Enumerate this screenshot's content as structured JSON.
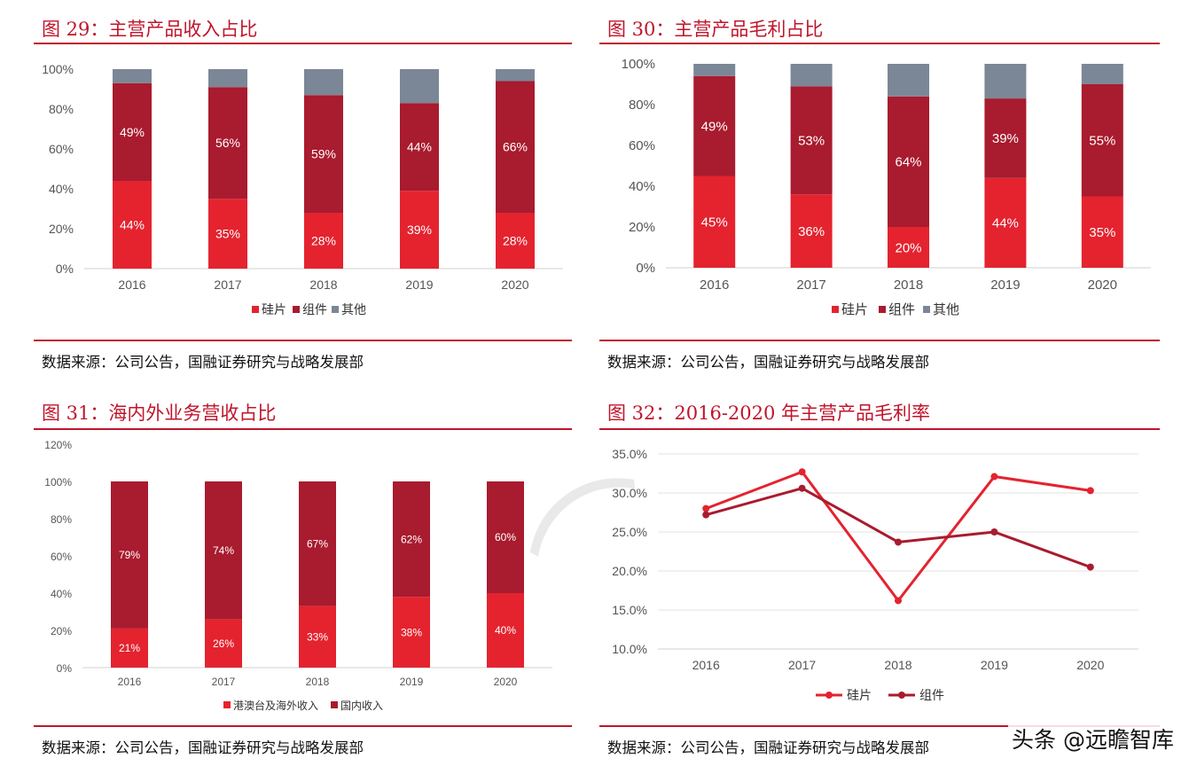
{
  "colors": {
    "accent": "#c0142b",
    "silicon": "#e4232f",
    "module": "#a91b2e",
    "other": "#7b8796"
  },
  "figures": [
    {
      "title": "图 29：主营产品收入占比",
      "source": "数据来源：公司公告，国融证券研究与战略发展部"
    },
    {
      "title": "图 30：主营产品毛利占比",
      "source": "数据来源：公司公告，国融证券研究与战略发展部"
    },
    {
      "title": "图 31：海内外业务营收占比",
      "source": "数据来源：公司公告，国融证券研究与战略发展部"
    },
    {
      "title": "图 32：2016-2020 年主营产品毛利率",
      "source": "数据来源：公司公告，国融证券研究与战略发展部"
    }
  ],
  "brand_watermark": "头条 @远瞻智库",
  "chart_data": [
    {
      "type": "bar",
      "stacked": true,
      "categories": [
        "2016",
        "2017",
        "2018",
        "2019",
        "2020"
      ],
      "yticks": [
        "0%",
        "20%",
        "40%",
        "60%",
        "80%",
        "100%"
      ],
      "ylim": [
        0,
        100
      ],
      "series": [
        {
          "name": "硅片",
          "color": "#e4232f",
          "values": [
            44,
            35,
            28,
            39,
            28
          ],
          "labels": [
            "44%",
            "35%",
            "28%",
            "39%",
            "28%"
          ]
        },
        {
          "name": "组件",
          "color": "#a91b2e",
          "values": [
            49,
            56,
            59,
            44,
            66
          ],
          "labels": [
            "49%",
            "56%",
            "59%",
            "44%",
            "66%"
          ]
        },
        {
          "name": "其他",
          "color": "#7b8796",
          "values": [
            7,
            9,
            13,
            17,
            6
          ],
          "labels": [
            "",
            "",
            "",
            "",
            ""
          ]
        }
      ],
      "legend": "bottom",
      "grid": false
    },
    {
      "type": "bar",
      "stacked": true,
      "categories": [
        "2016",
        "2017",
        "2018",
        "2019",
        "2020"
      ],
      "yticks": [
        "0%",
        "20%",
        "40%",
        "60%",
        "80%",
        "100%"
      ],
      "ylim": [
        0,
        100
      ],
      "series": [
        {
          "name": "硅片",
          "color": "#e4232f",
          "values": [
            45,
            36,
            20,
            44,
            35
          ],
          "labels": [
            "45%",
            "36%",
            "20%",
            "44%",
            "35%"
          ]
        },
        {
          "name": "组件",
          "color": "#a91b2e",
          "values": [
            49,
            53,
            64,
            39,
            55
          ],
          "labels": [
            "49%",
            "53%",
            "64%",
            "39%",
            "55%"
          ]
        },
        {
          "name": "其他",
          "color": "#7b8796",
          "values": [
            6,
            11,
            16,
            17,
            10
          ],
          "labels": [
            "",
            "",
            "",
            "",
            ""
          ]
        }
      ],
      "legend": "bottom",
      "grid": false
    },
    {
      "type": "bar",
      "stacked": true,
      "categories": [
        "2016",
        "2017",
        "2018",
        "2019",
        "2020"
      ],
      "yticks": [
        "0%",
        "20%",
        "40%",
        "60%",
        "80%",
        "100%",
        "120%"
      ],
      "ylim": [
        0,
        120
      ],
      "series": [
        {
          "name": "港澳台及海外收入",
          "color": "#e4232f",
          "values": [
            21,
            26,
            33,
            38,
            40
          ],
          "labels": [
            "21%",
            "26%",
            "33%",
            "38%",
            "40%"
          ]
        },
        {
          "name": "国内收入",
          "color": "#a91b2e",
          "values": [
            79,
            74,
            67,
            62,
            60
          ],
          "labels": [
            "79%",
            "74%",
            "67%",
            "62%",
            "60%"
          ]
        }
      ],
      "legend": "bottom",
      "grid": false
    },
    {
      "type": "line",
      "categories": [
        "2016",
        "2017",
        "2018",
        "2019",
        "2020"
      ],
      "yticks": [
        "10.0%",
        "15.0%",
        "20.0%",
        "25.0%",
        "30.0%",
        "35.0%"
      ],
      "ylim": [
        10,
        35
      ],
      "series": [
        {
          "name": "硅片",
          "color": "#e4232f",
          "values": [
            28.0,
            32.7,
            16.2,
            32.1,
            30.3
          ]
        },
        {
          "name": "组件",
          "color": "#a91b2e",
          "values": [
            27.2,
            30.6,
            23.7,
            25.0,
            20.5
          ]
        }
      ],
      "legend": "bottom",
      "grid": true
    }
  ]
}
